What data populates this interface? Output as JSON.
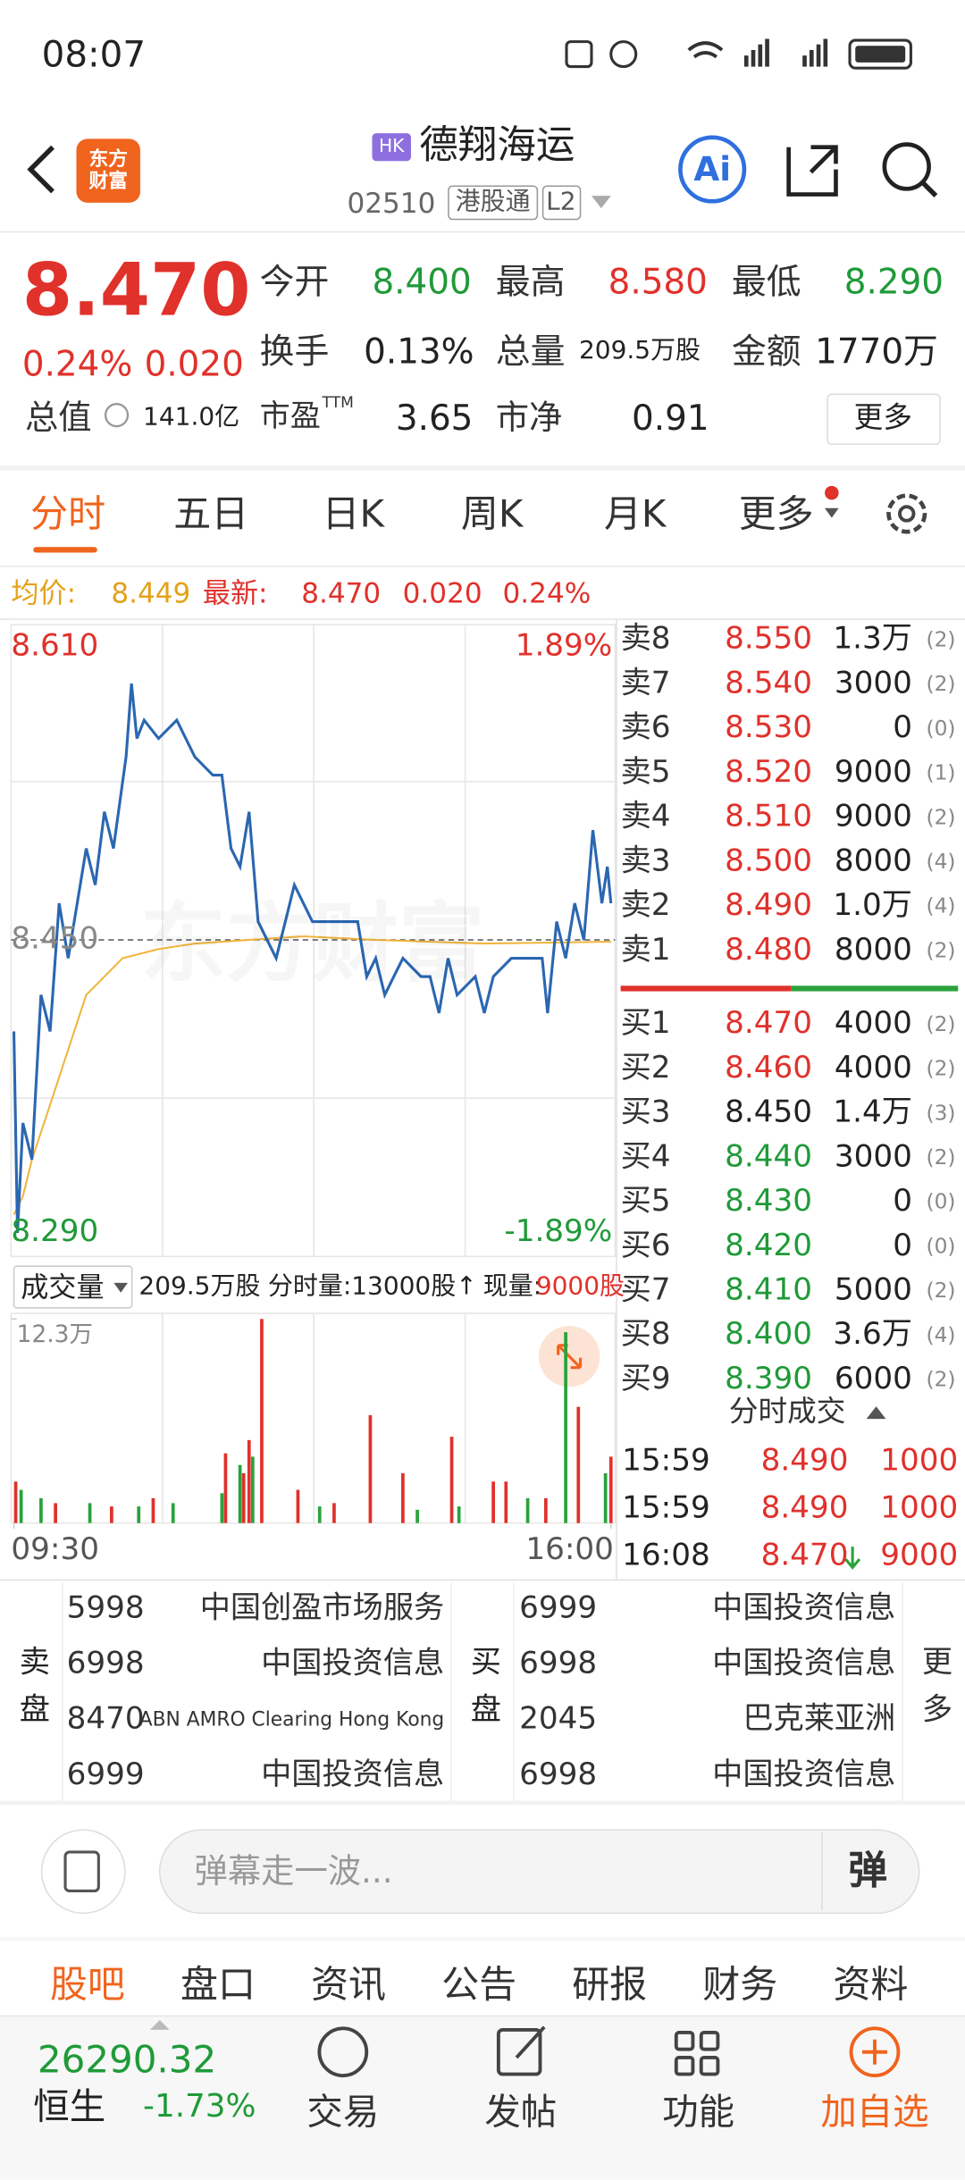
{
  "status_bar": {
    "time": "08:07"
  },
  "header": {
    "logo": "东方财富",
    "market_badge": "HK",
    "name": "德翔海运",
    "code": "02510",
    "tags": [
      "港股通",
      "L2"
    ],
    "ai": "Ai"
  },
  "quote": {
    "price": "8.470",
    "change_pct": "0.24%",
    "change": "0.020",
    "fields": [
      {
        "label": "今开",
        "value": "8.400",
        "color": "#1f9a38"
      },
      {
        "label": "最高",
        "value": "8.580",
        "color": "#e0312b"
      },
      {
        "label": "最低",
        "value": "8.290",
        "color": "#1f9a38"
      },
      {
        "label": "换手",
        "value": "0.13%",
        "color": "#222222"
      },
      {
        "label": "总量",
        "value": "209.5万股",
        "color": "#222222"
      },
      {
        "label": "金额",
        "value": "1770万",
        "color": "#222222"
      }
    ],
    "market_cap": {
      "label": "总值",
      "value": "141.0亿"
    },
    "pe": {
      "label": "市盈",
      "sup": "TTM",
      "value": "3.65"
    },
    "pb": {
      "label": "市净",
      "value": "0.91"
    },
    "more": "更多"
  },
  "chart_tabs": [
    "分时",
    "五日",
    "日K",
    "周K",
    "月K",
    "更多"
  ],
  "info_line": {
    "avg_label": "均价:",
    "avg": "8.449",
    "latest_label": "最新:",
    "latest": "8.470",
    "change": "0.020",
    "change_pct": "0.24%"
  },
  "watermark": "东方财富",
  "chart_data": [
    {
      "type": "line",
      "xlim": [
        0,
        330
      ],
      "ylim": [
        8.29,
        8.61
      ],
      "yticks": [
        {
          "value": 8.61,
          "label": "8.610"
        },
        {
          "value": 8.45,
          "label": "8.450"
        },
        {
          "value": 8.29,
          "label": "8.290"
        }
      ],
      "y2lim": [
        -1.89,
        1.89
      ],
      "y2ticks": [
        {
          "value": 1.89,
          "label": "1.89%"
        },
        {
          "value": -1.89,
          "label": "-1.89%"
        }
      ],
      "series": [
        {
          "name": "最新",
          "color": "#2b67b1",
          "x": [
            0,
            2,
            5,
            10,
            15,
            20,
            25,
            30,
            40,
            45,
            50,
            55,
            62,
            65,
            68,
            72,
            80,
            90,
            100,
            110,
            115,
            120,
            125,
            130,
            135,
            140,
            145,
            150,
            155,
            165,
            175,
            190,
            195,
            200,
            205,
            210,
            215,
            225,
            230,
            235,
            240,
            245,
            255,
            260,
            265,
            275,
            285,
            292,
            295,
            300,
            305,
            310,
            315,
            320,
            325,
            328,
            330
          ],
          "values": [
            8.4,
            8.29,
            8.35,
            8.33,
            8.42,
            8.4,
            8.47,
            8.44,
            8.5,
            8.48,
            8.52,
            8.5,
            8.55,
            8.59,
            8.56,
            8.57,
            8.56,
            8.57,
            8.55,
            8.54,
            8.54,
            8.5,
            8.49,
            8.52,
            8.46,
            8.45,
            8.44,
            8.46,
            8.48,
            8.46,
            8.46,
            8.46,
            8.43,
            8.44,
            8.42,
            8.43,
            8.44,
            8.43,
            8.43,
            8.41,
            8.44,
            8.42,
            8.43,
            8.41,
            8.43,
            8.44,
            8.44,
            8.44,
            8.41,
            8.46,
            8.44,
            8.47,
            8.45,
            8.51,
            8.47,
            8.49,
            8.47
          ]
        },
        {
          "name": "均价",
          "color": "#f0b43c",
          "x": [
            0,
            5,
            10,
            20,
            30,
            40,
            50,
            60,
            80,
            100,
            130,
            160,
            200,
            260,
            330
          ],
          "values": [
            8.3,
            8.31,
            8.33,
            8.36,
            8.39,
            8.42,
            8.43,
            8.44,
            8.445,
            8.448,
            8.45,
            8.452,
            8.45,
            8.448,
            8.449
          ]
        }
      ]
    },
    {
      "type": "bar",
      "xlim": [
        0,
        330
      ],
      "ylim": [
        0,
        123000
      ],
      "xticks": [
        {
          "value": 0,
          "label": "09:30"
        },
        {
          "value": 330,
          "label": "16:00"
        }
      ],
      "yticks": [
        {
          "value": 123000,
          "label": "12.3万"
        }
      ],
      "series": [
        {
          "name": "上涨",
          "color": "#e0312b",
          "x": [
            1,
            23,
            54,
            77,
            117,
            127,
            130,
            137,
            157,
            177,
            197,
            215,
            242,
            265,
            272,
            294,
            312,
            330
          ],
          "values": [
            25000,
            12000,
            10000,
            15000,
            42000,
            30000,
            50000,
            123000,
            20000,
            12000,
            65000,
            30000,
            52000,
            25000,
            25000,
            15000,
            70000,
            40000
          ]
        },
        {
          "name": "下跌",
          "color": "#2aa23c",
          "x": [
            4,
            15,
            42,
            69,
            88,
            115,
            125,
            132,
            169,
            223,
            246,
            284,
            305,
            327
          ],
          "values": [
            20000,
            15000,
            12000,
            10000,
            12000,
            18000,
            35000,
            40000,
            10000,
            8000,
            10000,
            15000,
            115000,
            30000
          ]
        }
      ]
    }
  ],
  "volume_header": {
    "label": "成交量",
    "total": "209.5万股",
    "period_volume": "分时量:13000股↑",
    "current_label": "现量:",
    "current": "9000股"
  },
  "order_book": {
    "ask_color": "#e0312b",
    "asks": [
      {
        "label": "卖8",
        "price": "8.550",
        "volume": "1.3万",
        "count": "(2)"
      },
      {
        "label": "卖7",
        "price": "8.540",
        "volume": "3000",
        "count": "(2)"
      },
      {
        "label": "卖6",
        "price": "8.530",
        "volume": "0",
        "count": "(0)"
      },
      {
        "label": "卖5",
        "price": "8.520",
        "volume": "9000",
        "count": "(1)"
      },
      {
        "label": "卖4",
        "price": "8.510",
        "volume": "9000",
        "count": "(2)"
      },
      {
        "label": "卖3",
        "price": "8.500",
        "volume": "8000",
        "count": "(4)"
      },
      {
        "label": "卖2",
        "price": "8.490",
        "volume": "1.0万",
        "count": "(4)"
      },
      {
        "label": "卖1",
        "price": "8.480",
        "volume": "8000",
        "count": "(2)"
      }
    ],
    "bids": [
      {
        "label": "买1",
        "price": "8.470",
        "volume": "4000",
        "count": "(2)",
        "color": "#e0312b"
      },
      {
        "label": "买2",
        "price": "8.460",
        "volume": "4000",
        "count": "(2)",
        "color": "#e0312b"
      },
      {
        "label": "买3",
        "price": "8.450",
        "volume": "1.4万",
        "count": "(3)",
        "color": "#222222"
      },
      {
        "label": "买4",
        "price": "8.440",
        "volume": "3000",
        "count": "(2)",
        "color": "#1f9a38"
      },
      {
        "label": "买5",
        "price": "8.430",
        "volume": "0",
        "count": "(0)",
        "color": "#1f9a38"
      },
      {
        "label": "买6",
        "price": "8.420",
        "volume": "0",
        "count": "(0)",
        "color": "#1f9a38"
      },
      {
        "label": "买7",
        "price": "8.410",
        "volume": "5000",
        "count": "(2)",
        "color": "#1f9a38"
      },
      {
        "label": "买8",
        "price": "8.400",
        "volume": "3.6万",
        "count": "(4)",
        "color": "#1f9a38"
      },
      {
        "label": "买9",
        "price": "8.390",
        "volume": "6000",
        "count": "(2)",
        "color": "#1f9a38"
      }
    ]
  },
  "trades": {
    "title": "分时成交",
    "rows": [
      {
        "time": "15:59",
        "price": "8.490",
        "volume": "1000"
      },
      {
        "time": "15:59",
        "price": "8.490",
        "volume": "1000"
      },
      {
        "time": "16:08",
        "price": "8.470",
        "volume": "9000"
      }
    ]
  },
  "broker_queue": {
    "sell_label": "卖盘",
    "sell": [
      {
        "id": "5998",
        "name": "中国创盈市场服务"
      },
      {
        "id": "6998",
        "name": "中国投资信息"
      },
      {
        "id": "8470",
        "name": "ABN AMRO Clearing Hong Kong"
      },
      {
        "id": "6999",
        "name": "中国投资信息"
      }
    ],
    "buy_label": "买盘",
    "buy": [
      {
        "id": "6999",
        "name": "中国投资信息"
      },
      {
        "id": "6998",
        "name": "中国投资信息"
      },
      {
        "id": "2045",
        "name": "巴克莱亚洲"
      },
      {
        "id": "6998",
        "name": "中国投资信息"
      }
    ],
    "more": "更多"
  },
  "comment": {
    "placeholder": "弹幕走一波...",
    "button": "弹"
  },
  "bottom_tabs": [
    "股吧",
    "盘口",
    "资讯",
    "公告",
    "研报",
    "财务",
    "资料"
  ],
  "nav": {
    "index_value": "26290.32",
    "index_name": "恒生",
    "index_change": "-1.73%",
    "items": [
      "交易",
      "发帖",
      "功能",
      "加自选"
    ]
  }
}
